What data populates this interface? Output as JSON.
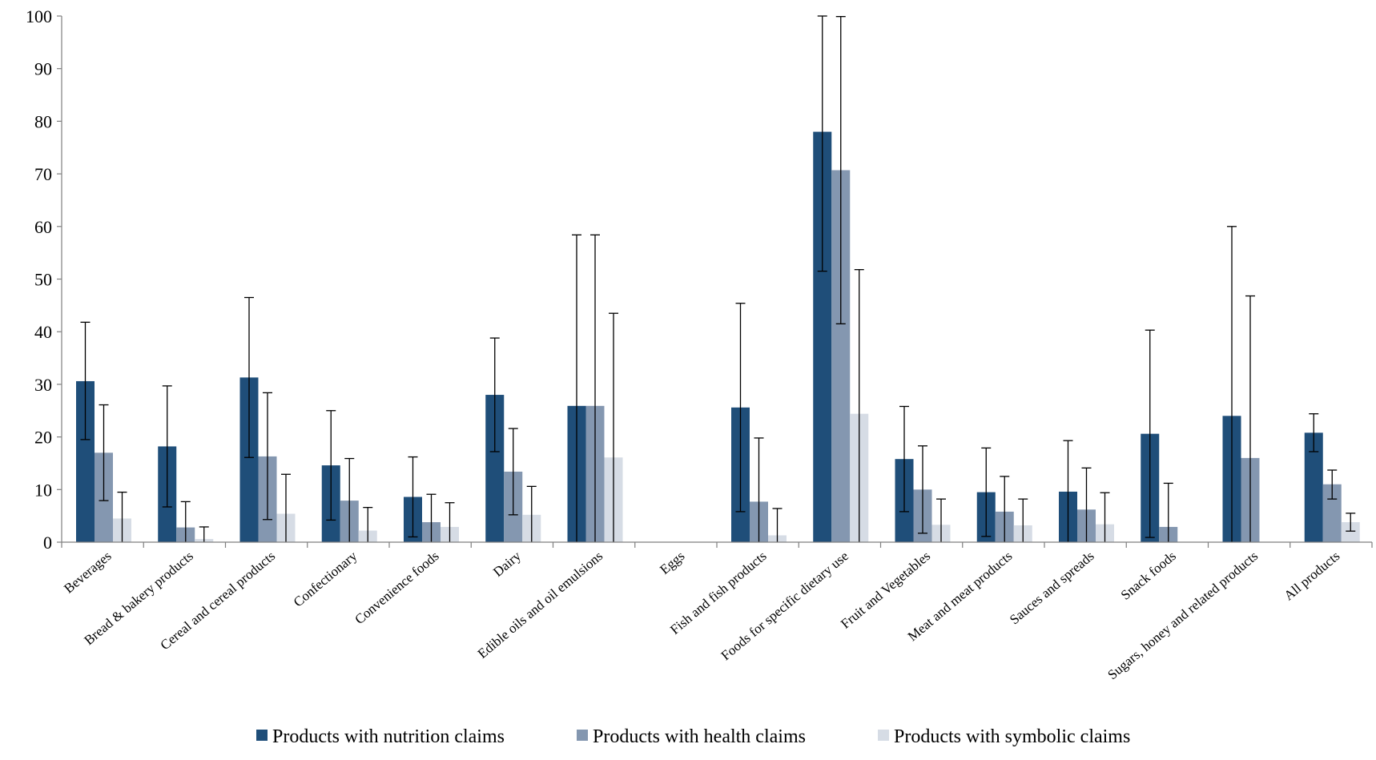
{
  "chart_data": {
    "type": "bar",
    "title": "",
    "xlabel": "",
    "ylabel": "",
    "ylim": [
      0,
      100
    ],
    "yticks": [
      0,
      10,
      20,
      30,
      40,
      50,
      60,
      70,
      80,
      90,
      100
    ],
    "grid": false,
    "legend_position": "bottom",
    "error_bars": true,
    "categories": [
      "Beverages",
      "Bread & bakery products",
      "Cereal and cereal products",
      "Confectionary",
      "Convenience foods",
      "Dairy",
      "Edible oils and oil emulsions",
      "Eggs",
      "Fish and fish products",
      "Foods for specific dietary use",
      "Fruit and Vegetables",
      "Meat and meat products",
      "Sauces and spreads",
      "Snack foods",
      "Sugars, honey and related products",
      "All products"
    ],
    "series": [
      {
        "name": "Products with nutrition claims",
        "color": "#1f4e79",
        "values": [
          30.6,
          18.2,
          31.3,
          14.6,
          8.6,
          28.0,
          25.9,
          0,
          25.6,
          78.0,
          15.8,
          9.5,
          9.6,
          20.6,
          24.0,
          20.8
        ],
        "error_low": [
          19.5,
          6.7,
          16.1,
          4.2,
          1.0,
          17.2,
          0,
          0,
          5.8,
          51.5,
          5.8,
          1.1,
          0,
          0.9,
          0,
          17.2
        ],
        "error_high": [
          41.8,
          29.7,
          46.5,
          25.0,
          16.2,
          38.8,
          58.4,
          0,
          45.4,
          100,
          25.8,
          17.9,
          19.3,
          40.3,
          60.0,
          24.4
        ]
      },
      {
        "name": "Products with health claims",
        "color": "#8497b0",
        "values": [
          17.0,
          2.8,
          16.3,
          7.9,
          3.8,
          13.4,
          25.9,
          0,
          7.7,
          70.7,
          10.0,
          5.8,
          6.2,
          2.9,
          16.0,
          11.0
        ],
        "error_low": [
          7.9,
          0,
          4.3,
          0,
          0,
          5.2,
          0,
          0,
          0,
          41.5,
          1.7,
          0,
          0,
          0,
          0,
          8.2
        ],
        "error_high": [
          26.1,
          7.7,
          28.4,
          15.9,
          9.1,
          21.6,
          58.4,
          0,
          19.8,
          99.9,
          18.3,
          12.5,
          14.1,
          11.2,
          46.8,
          13.7
        ]
      },
      {
        "name": "Products with symbolic claims",
        "color": "#d6dce5",
        "values": [
          4.5,
          0.6,
          5.4,
          2.2,
          2.9,
          5.2,
          16.1,
          0,
          1.3,
          24.4,
          3.3,
          3.2,
          3.4,
          0,
          0,
          3.8
        ],
        "error_low": [
          0,
          0,
          0,
          0,
          0,
          0,
          0,
          0,
          0,
          0,
          0,
          0,
          0,
          0,
          0,
          2.1
        ],
        "error_high": [
          9.5,
          2.9,
          12.9,
          6.6,
          7.5,
          10.6,
          43.5,
          0,
          6.4,
          51.8,
          8.2,
          8.2,
          9.4,
          0,
          0,
          5.5
        ]
      }
    ]
  }
}
